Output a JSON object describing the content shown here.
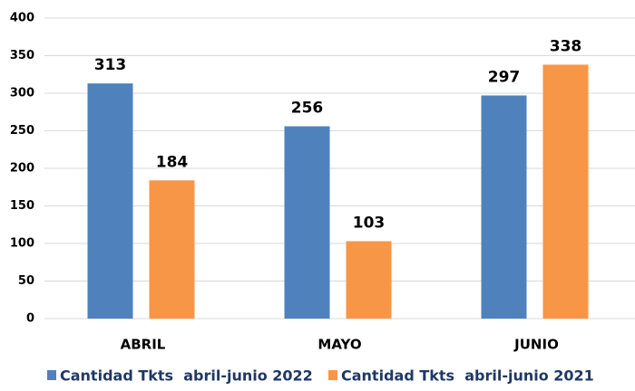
{
  "chart_data": {
    "type": "bar",
    "categories": [
      "ABRIL",
      "MAYO",
      "JUNIO"
    ],
    "series": [
      {
        "name": "Cantidad Tkts  abril-junio 2022",
        "color": "#4f81bd",
        "values": [
          313,
          256,
          297
        ]
      },
      {
        "name": "Cantidad Tkts  abril-junio 2021",
        "color": "#f79646",
        "values": [
          184,
          103,
          338
        ]
      }
    ],
    "ylim": [
      0,
      400
    ],
    "yticks": [
      0,
      50,
      100,
      150,
      200,
      250,
      300,
      350,
      400
    ],
    "grid": true,
    "legend": "bottom"
  }
}
